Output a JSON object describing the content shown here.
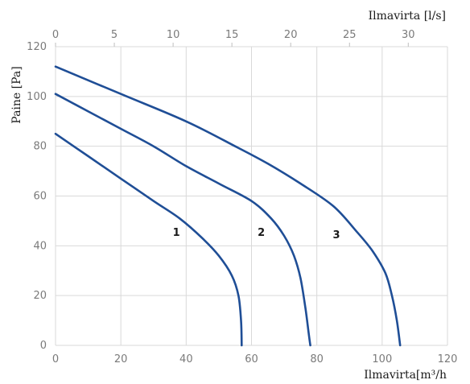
{
  "chart_data": {
    "type": "line",
    "xlabel": "Ilmavirta[m³/h",
    "x2label": "Ilmavirta [l/s]",
    "ylabel": "Paine [Pa]",
    "xlim": [
      0,
      120
    ],
    "x2lim": [
      0,
      33.333
    ],
    "ylim": [
      0,
      120
    ],
    "xticks": [
      0,
      20,
      40,
      60,
      80,
      100,
      120
    ],
    "x2ticks": [
      0,
      5,
      10,
      15,
      20,
      25,
      30
    ],
    "yticks": [
      0,
      20,
      40,
      60,
      80,
      100,
      120
    ],
    "grid": true,
    "line_color": "#1f4e96",
    "series": [
      {
        "name": "1",
        "label_at": [
          37,
          44
        ],
        "points": [
          [
            0,
            85
          ],
          [
            10,
            76
          ],
          [
            20,
            67
          ],
          [
            30,
            58
          ],
          [
            38,
            51
          ],
          [
            45,
            43
          ],
          [
            50,
            36
          ],
          [
            54,
            28
          ],
          [
            56,
            20
          ],
          [
            56.8,
            10
          ],
          [
            57,
            0
          ]
        ]
      },
      {
        "name": "2",
        "label_at": [
          63,
          44
        ],
        "points": [
          [
            0,
            101
          ],
          [
            10,
            94
          ],
          [
            20,
            87
          ],
          [
            30,
            80
          ],
          [
            40,
            72
          ],
          [
            50,
            65
          ],
          [
            60,
            58
          ],
          [
            66,
            51
          ],
          [
            70,
            44
          ],
          [
            73,
            36
          ],
          [
            75,
            27
          ],
          [
            76.5,
            15
          ],
          [
            77.5,
            5
          ],
          [
            78,
            0
          ]
        ]
      },
      {
        "name": "3",
        "label_at": [
          86,
          43
        ],
        "points": [
          [
            0,
            112
          ],
          [
            20,
            101
          ],
          [
            40,
            90
          ],
          [
            55,
            80
          ],
          [
            65,
            73
          ],
          [
            75,
            65
          ],
          [
            85,
            56
          ],
          [
            92,
            46
          ],
          [
            97,
            38
          ],
          [
            101,
            29
          ],
          [
            103,
            20
          ],
          [
            104.5,
            10
          ],
          [
            105.5,
            0
          ]
        ]
      }
    ]
  }
}
